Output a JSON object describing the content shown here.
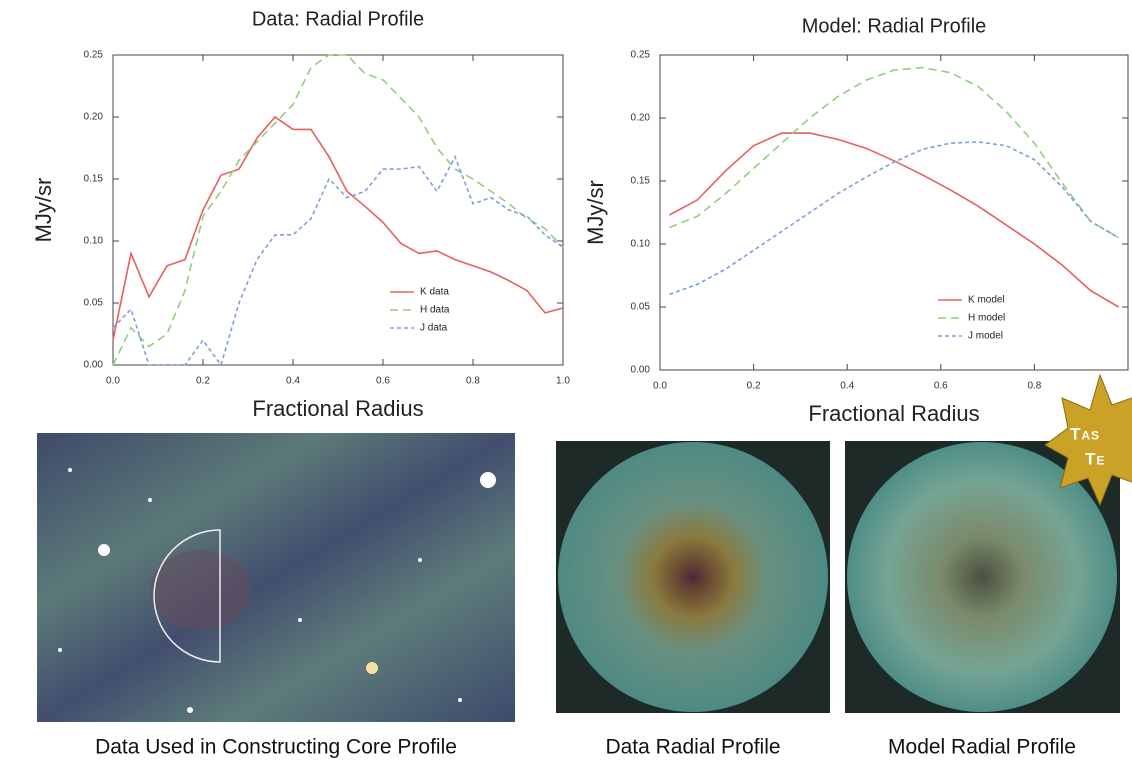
{
  "chart_data": [
    {
      "type": "line",
      "title": "Data: Radial Profile",
      "xlabel": "Fractional Radius",
      "ylabel": "MJy/sr",
      "x": [
        0,
        0.04,
        0.08,
        0.12,
        0.16,
        0.2,
        0.24,
        0.28,
        0.32,
        0.36,
        0.4,
        0.44,
        0.48,
        0.52,
        0.56,
        0.6,
        0.64,
        0.68,
        0.72,
        0.76,
        0.8,
        0.84,
        0.88,
        0.92,
        0.96,
        1.0
      ],
      "series": [
        {
          "name": "K data",
          "color": "#e8605c",
          "dash": "solid",
          "values": [
            0.02,
            0.09,
            0.055,
            0.08,
            0.085,
            0.125,
            0.153,
            0.158,
            0.183,
            0.2,
            0.19,
            0.19,
            0.168,
            0.14,
            0.128,
            0.115,
            0.098,
            0.09,
            0.092,
            0.085,
            0.08,
            0.075,
            0.068,
            0.06,
            0.042,
            0.046
          ]
        },
        {
          "name": "H data",
          "color": "#8fd07a",
          "dash": "dashed",
          "values": [
            0.0,
            0.03,
            0.015,
            0.025,
            0.06,
            0.12,
            0.14,
            0.165,
            0.18,
            0.195,
            0.21,
            0.24,
            0.25,
            0.25,
            0.235,
            0.23,
            0.215,
            0.2,
            0.175,
            0.158,
            0.15,
            0.14,
            0.13,
            0.118,
            0.11,
            0.095
          ]
        },
        {
          "name": "J data",
          "color": "#7f9ee0",
          "dash": "short-dashed",
          "values": [
            0.03,
            0.045,
            0.0,
            0.0,
            0.0,
            0.02,
            0.0,
            0.05,
            0.085,
            0.105,
            0.105,
            0.118,
            0.15,
            0.135,
            0.14,
            0.158,
            0.158,
            0.16,
            0.14,
            0.168,
            0.13,
            0.135,
            0.125,
            0.12,
            0.105,
            0.095
          ]
        }
      ],
      "xlim": [
        0,
        1.0
      ],
      "ylim": [
        0,
        0.25
      ],
      "xticks": [
        {
          "value": 0,
          "label": "0.0"
        },
        0.2,
        0.4,
        0.6,
        0.8,
        {
          "value": 1.0,
          "label": "1.0"
        }
      ],
      "yticks": [
        {
          "value": 0,
          "label": "0.00"
        },
        0.05,
        {
          "value": 0.1,
          "label": "0.10"
        },
        0.15,
        {
          "value": 0.2,
          "label": "0.20"
        },
        0.25
      ],
      "legend": "lower right"
    },
    {
      "type": "line",
      "title": "Model: Radial Profile",
      "xlabel": "Fractional Radius",
      "ylabel": "MJy/sr",
      "x": [
        0.02,
        0.08,
        0.14,
        0.2,
        0.26,
        0.32,
        0.38,
        0.44,
        0.5,
        0.56,
        0.62,
        0.68,
        0.74,
        0.8,
        0.86,
        0.92,
        0.98
      ],
      "series": [
        {
          "name": "K model",
          "color": "#e8605c",
          "dash": "solid",
          "values": [
            0.123,
            0.135,
            0.158,
            0.178,
            0.188,
            0.188,
            0.183,
            0.176,
            0.166,
            0.155,
            0.143,
            0.13,
            0.115,
            0.1,
            0.083,
            0.063,
            0.05
          ]
        },
        {
          "name": "H model",
          "color": "#8fd07a",
          "dash": "dashed",
          "values": [
            0.113,
            0.122,
            0.14,
            0.16,
            0.18,
            0.2,
            0.217,
            0.23,
            0.238,
            0.24,
            0.236,
            0.225,
            0.205,
            0.18,
            0.148,
            0.118,
            0.105
          ]
        },
        {
          "name": "J model",
          "color": "#7f9ee0",
          "dash": "short-dashed",
          "values": [
            0.06,
            0.068,
            0.08,
            0.095,
            0.11,
            0.125,
            0.14,
            0.153,
            0.165,
            0.175,
            0.18,
            0.181,
            0.178,
            0.167,
            0.145,
            0.118,
            0.105
          ]
        }
      ],
      "xlim": [
        0,
        1.0
      ],
      "ylim": [
        0,
        0.25
      ],
      "xticks": [
        {
          "value": 0,
          "label": "0.0"
        },
        0.2,
        0.4,
        0.6,
        0.8
      ],
      "yticks": [
        {
          "value": 0,
          "label": "0.00"
        },
        0.05,
        {
          "value": 0.1,
          "label": "0.10"
        },
        0.15,
        {
          "value": 0.2,
          "label": "0.20"
        },
        0.25
      ],
      "legend": "lower right"
    }
  ],
  "captions": [
    "Data Used in Constructing Core Profile",
    "Data Radial Profile",
    "Model Radial Profile"
  ],
  "badge": [
    "Tas",
    "Te"
  ]
}
